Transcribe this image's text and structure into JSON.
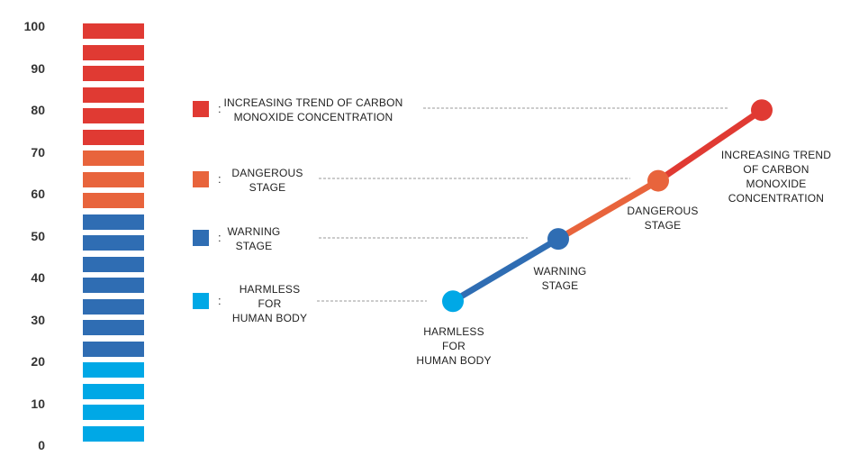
{
  "colors": {
    "harmless": "#00a8e6",
    "warning": "#2f6db3",
    "dangerous": "#e8643c",
    "increasing": "#e03a33",
    "leader": "#9a9a9a"
  },
  "scale": {
    "ticks": [
      "100",
      "90",
      "80",
      "70",
      "60",
      "50",
      "40",
      "30",
      "20",
      "10",
      "0"
    ],
    "bar_blocks": [
      "increasing",
      "increasing",
      "increasing",
      "increasing",
      "increasing",
      "increasing",
      "dangerous",
      "dangerous",
      "dangerous",
      "warning",
      "warning",
      "warning",
      "warning",
      "warning",
      "warning",
      "warning",
      "harmless",
      "harmless",
      "harmless",
      "harmless"
    ]
  },
  "legend": [
    {
      "key": "increasing",
      "colon": ":",
      "lines": [
        "INCREASING TREND OF CARBON",
        "MONOXIDE CONCENTRATION"
      ]
    },
    {
      "key": "dangerous",
      "colon": ":",
      "lines": [
        "DANGEROUS",
        "STAGE"
      ]
    },
    {
      "key": "warning",
      "colon": ":",
      "lines": [
        "WARNING",
        "STAGE"
      ]
    },
    {
      "key": "harmless",
      "colon": ":",
      "lines": [
        "HARMLESS",
        "FOR",
        "HUMAN BODY"
      ]
    }
  ],
  "trend_points": [
    {
      "key": "harmless",
      "value": 34,
      "lines": [
        "HARMLESS",
        "FOR",
        "HUMAN BODY"
      ]
    },
    {
      "key": "warning",
      "value": 49,
      "lines": [
        "WARNING",
        "STAGE"
      ]
    },
    {
      "key": "dangerous",
      "value": 63,
      "lines": [
        "DANGEROUS",
        "STAGE"
      ]
    },
    {
      "key": "increasing",
      "value": 80,
      "lines": [
        "INCREASING TREND",
        "OF CARBON",
        "MONOXIDE",
        "CONCENTRATION"
      ]
    }
  ]
}
